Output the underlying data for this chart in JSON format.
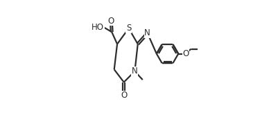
{
  "bg_color": "#ffffff",
  "line_color": "#2d2d2d",
  "line_width": 1.6,
  "font_size": 8.5,
  "figsize": [
    4.01,
    1.76
  ],
  "dpi": 100,
  "xlim": [
    0.0,
    1.0
  ],
  "ylim": [
    0.0,
    1.0
  ]
}
